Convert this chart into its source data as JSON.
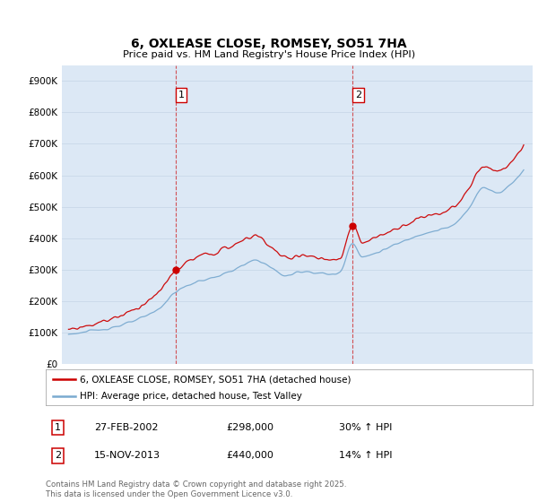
{
  "title": "6, OXLEASE CLOSE, ROMSEY, SO51 7HA",
  "subtitle": "Price paid vs. HM Land Registry's House Price Index (HPI)",
  "ylim": [
    0,
    950000
  ],
  "yticks": [
    0,
    100000,
    200000,
    300000,
    400000,
    500000,
    600000,
    700000,
    800000,
    900000
  ],
  "legend_line1": "6, OXLEASE CLOSE, ROMSEY, SO51 7HA (detached house)",
  "legend_line2": "HPI: Average price, detached house, Test Valley",
  "transaction1_date": "27-FEB-2002",
  "transaction1_price": "£298,000",
  "transaction1_hpi": "30% ↑ HPI",
  "transaction2_date": "15-NOV-2013",
  "transaction2_price": "£440,000",
  "transaction2_hpi": "14% ↑ HPI",
  "copyright_text": "Contains HM Land Registry data © Crown copyright and database right 2025.\nThis data is licensed under the Open Government Licence v3.0.",
  "red_color": "#cc0000",
  "blue_color": "#7aaad0",
  "vline_color": "#cc0000",
  "background_color": "#dce8f5",
  "plot_bg_color": "#ffffff",
  "vline1_x": 2002.15,
  "vline2_x": 2013.88,
  "marker1_y": 298000,
  "marker2_y": 440000,
  "xlim_left": 1994.6,
  "xlim_right": 2025.8
}
